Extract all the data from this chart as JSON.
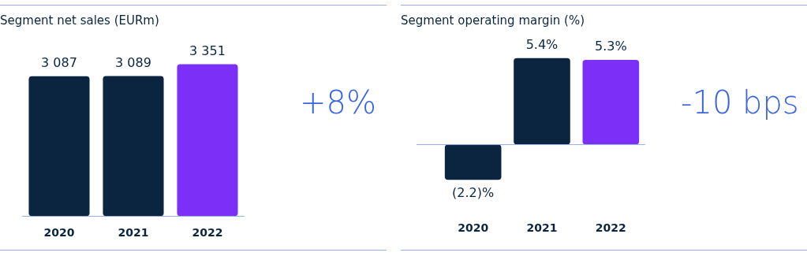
{
  "chart_data": [
    {
      "type": "bar",
      "title": "Segment net sales (EURm)",
      "categories": [
        "2020",
        "2021",
        "2022"
      ],
      "values": [
        3087,
        3089,
        3351
      ],
      "colors": [
        "#0b2540",
        "#0b2540",
        "#7b2ff7"
      ],
      "value_labels": [
        "3 087",
        "3 089",
        "3 351"
      ],
      "annotations": [
        "+8%"
      ]
    },
    {
      "type": "bar",
      "title": "Segment operating margin (%)",
      "categories": [
        "2020",
        "2021",
        "2022"
      ],
      "values": [
        -2.2,
        5.4,
        5.3
      ],
      "colors": [
        "#0b2540",
        "#0b2540",
        "#7b2ff7"
      ],
      "value_labels": [
        "(2.2)%",
        "5.4%",
        "5.3%"
      ],
      "ref_lines": [
        {
          "axis": "y",
          "value": 0,
          "color": "#9ab0e0"
        }
      ],
      "annotations": [
        "-10 bps"
      ]
    }
  ]
}
